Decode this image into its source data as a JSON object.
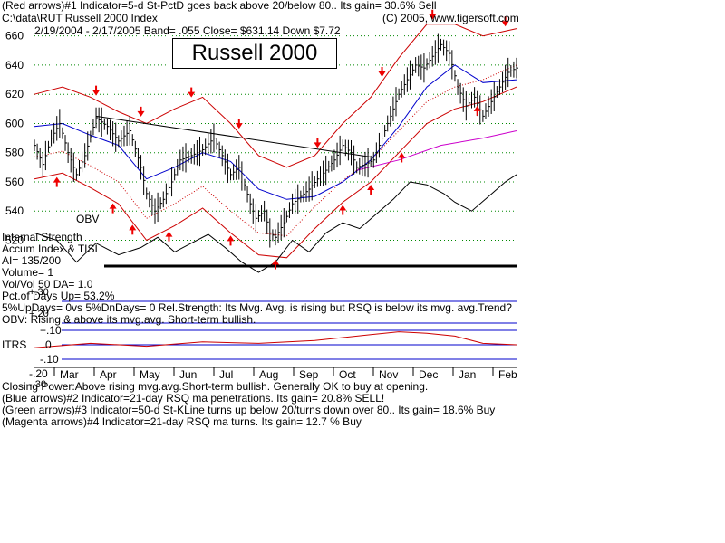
{
  "header": {
    "line1": "(Red arrows)#1 Indicator=5-d St-PctD goes back above 20/below 80.. Its gain= 30.6% Sell",
    "line2_left": "C:\\data\\RUT  Russell 2000 Index",
    "line2_right": "(C) 2005, www.tigersoft.com",
    "line3": "2/19/2004 - 2/17/2005  Band= .055   Close= $631.14   Down $7.72"
  },
  "title": "Russell 2000",
  "stats": {
    "obv_label": "OBV",
    "internal_strength": "Internal Strength",
    "accum": "Accum Index & TISI",
    "ai": "AI= 135/200",
    "volume": "Volume= 1",
    "volvol": "Vol/Vol 50 DA= 1.0",
    "pct_up": "Pct.of Days Up= 53.2%",
    "updays": "5%UpDays= 0vs 5%DnDays= 0   Rel.Strength: Its Mvg. Avg. is rising but RSQ is below its mvg. avg.Trend?",
    "obv_note": "OBV: Rising & above its mvg.avg. Short-term bullish.",
    "plus30": "+.30",
    "plus20": "+.20"
  },
  "itrs": {
    "label": "ITRS",
    "ticks": [
      "+.10",
      "0",
      "-.10",
      "-.20",
      "-.30"
    ]
  },
  "footer": {
    "line1": "Closing Power:Above rising mvg.avg.Short-term bullish. Generally OK to buy at opening.",
    "line2": "(Blue arrows)#2 Indicator=21-day RSQ ma penetrations. Its gain= 20.8% SELL!",
    "line3": "(Green arrows)#3 Indicator=50-d St-KLine turns up below 20/turns down over 80.. Its gain= 18.6% Buy",
    "line4": "(Magenta arrows)#4 Indicator=21-day RSQ ma turns. Its gain= 12.7 % Buy"
  },
  "colors": {
    "bars": "#000000",
    "bands": "#cc0000",
    "ma": "#0000cc",
    "ma_long": "#cc00cc",
    "arrows": "#ee0000",
    "grid": "#008800",
    "obv": "#000000",
    "itrs_line": "#cc0000",
    "itrs_grid": "#0000cc"
  },
  "chart_data": {
    "type": "line",
    "x": [
      "Mar",
      "Apr",
      "May",
      "Jun",
      "Jul",
      "Aug",
      "Sep",
      "Oct",
      "Nov",
      "Dec",
      "Jan",
      "Feb"
    ],
    "yticks": [
      660,
      640,
      620,
      600,
      580,
      560,
      540,
      520
    ],
    "ylim": [
      511,
      666
    ],
    "grid": true,
    "price_close_path": [
      [
        0,
        585
      ],
      [
        3,
        572
      ],
      [
        6,
        590
      ],
      [
        9,
        600
      ],
      [
        12,
        580
      ],
      [
        15,
        565
      ],
      [
        18,
        578
      ],
      [
        22,
        604
      ],
      [
        26,
        598
      ],
      [
        30,
        588
      ],
      [
        34,
        595
      ],
      [
        38,
        570
      ],
      [
        40,
        552
      ],
      [
        43,
        540
      ],
      [
        46,
        548
      ],
      [
        49,
        560
      ],
      [
        52,
        575
      ],
      [
        56,
        578
      ],
      [
        60,
        582
      ],
      [
        64,
        590
      ],
      [
        67,
        578
      ],
      [
        70,
        565
      ],
      [
        73,
        570
      ],
      [
        75,
        558
      ],
      [
        77,
        545
      ],
      [
        79,
        535
      ],
      [
        82,
        540
      ],
      [
        84,
        525
      ],
      [
        86,
        522
      ],
      [
        89,
        532
      ],
      [
        92,
        545
      ],
      [
        95,
        550
      ],
      [
        98,
        555
      ],
      [
        101,
        562
      ],
      [
        104,
        568
      ],
      [
        107,
        575
      ],
      [
        110,
        585
      ],
      [
        113,
        580
      ],
      [
        115,
        570
      ],
      [
        118,
        572
      ],
      [
        121,
        575
      ],
      [
        124,
        590
      ],
      [
        127,
        605
      ],
      [
        130,
        620
      ],
      [
        133,
        630
      ],
      [
        136,
        640
      ],
      [
        139,
        638
      ],
      [
        142,
        646
      ],
      [
        145,
        654
      ],
      [
        148,
        648
      ],
      [
        151,
        625
      ],
      [
        154,
        612
      ],
      [
        157,
        618
      ],
      [
        160,
        605
      ],
      [
        163,
        615
      ],
      [
        166,
        625
      ],
      [
        169,
        635
      ],
      [
        172,
        638
      ]
    ],
    "upper_band": [
      [
        0,
        620
      ],
      [
        10,
        625
      ],
      [
        20,
        618
      ],
      [
        30,
        608
      ],
      [
        40,
        600
      ],
      [
        50,
        610
      ],
      [
        60,
        618
      ],
      [
        70,
        600
      ],
      [
        80,
        578
      ],
      [
        90,
        570
      ],
      [
        100,
        578
      ],
      [
        110,
        600
      ],
      [
        120,
        618
      ],
      [
        130,
        645
      ],
      [
        140,
        668
      ],
      [
        150,
        668
      ],
      [
        160,
        660
      ],
      [
        172,
        665
      ]
    ],
    "lower_band": [
      [
        0,
        562
      ],
      [
        10,
        566
      ],
      [
        20,
        556
      ],
      [
        30,
        545
      ],
      [
        40,
        520
      ],
      [
        50,
        530
      ],
      [
        60,
        542
      ],
      [
        70,
        525
      ],
      [
        80,
        510
      ],
      [
        90,
        508
      ],
      [
        100,
        528
      ],
      [
        110,
        546
      ],
      [
        120,
        560
      ],
      [
        130,
        580
      ],
      [
        140,
        600
      ],
      [
        150,
        610
      ],
      [
        160,
        615
      ],
      [
        172,
        625
      ]
    ],
    "ma_21": [
      [
        0,
        598
      ],
      [
        10,
        600
      ],
      [
        20,
        592
      ],
      [
        30,
        585
      ],
      [
        40,
        562
      ],
      [
        50,
        570
      ],
      [
        60,
        580
      ],
      [
        70,
        574
      ],
      [
        80,
        555
      ],
      [
        90,
        548
      ],
      [
        100,
        550
      ],
      [
        110,
        560
      ],
      [
        120,
        575
      ],
      [
        130,
        598
      ],
      [
        140,
        625
      ],
      [
        150,
        640
      ],
      [
        160,
        628
      ],
      [
        172,
        630
      ]
    ],
    "ma_long": [
      [
        115,
        568
      ],
      [
        130,
        575
      ],
      [
        145,
        585
      ],
      [
        160,
        590
      ],
      [
        172,
        595
      ]
    ],
    "trendline": [
      [
        22,
        605
      ],
      [
        120,
        577
      ]
    ],
    "obv_path": [
      [
        0,
        525
      ],
      [
        8,
        520
      ],
      [
        15,
        505
      ],
      [
        22,
        518
      ],
      [
        30,
        510
      ],
      [
        38,
        515
      ],
      [
        44,
        522
      ],
      [
        50,
        512
      ],
      [
        56,
        518
      ],
      [
        62,
        524
      ],
      [
        68,
        515
      ],
      [
        74,
        505
      ],
      [
        80,
        498
      ],
      [
        86,
        505
      ],
      [
        92,
        520
      ],
      [
        98,
        512
      ],
      [
        104,
        525
      ],
      [
        110,
        532
      ],
      [
        116,
        528
      ],
      [
        122,
        538
      ],
      [
        128,
        548
      ],
      [
        134,
        560
      ],
      [
        140,
        558
      ],
      [
        146,
        552
      ],
      [
        150,
        546
      ],
      [
        156,
        540
      ],
      [
        162,
        550
      ],
      [
        168,
        560
      ],
      [
        172,
        565
      ]
    ],
    "itrs_path": [
      [
        0,
        -0.02
      ],
      [
        20,
        0.01
      ],
      [
        40,
        -0.01
      ],
      [
        60,
        0.02
      ],
      [
        80,
        0.01
      ],
      [
        100,
        0.03
      ],
      [
        120,
        0.07
      ],
      [
        130,
        0.09
      ],
      [
        140,
        0.08
      ],
      [
        150,
        0.06
      ],
      [
        160,
        0.01
      ],
      [
        172,
        0.0
      ]
    ],
    "red_arrow_down_idx": [
      22,
      38,
      56,
      73,
      101,
      124,
      142,
      168
    ],
    "red_arrow_up_idx": [
      8,
      28,
      35,
      48,
      70,
      86,
      110,
      120,
      131,
      158
    ]
  }
}
